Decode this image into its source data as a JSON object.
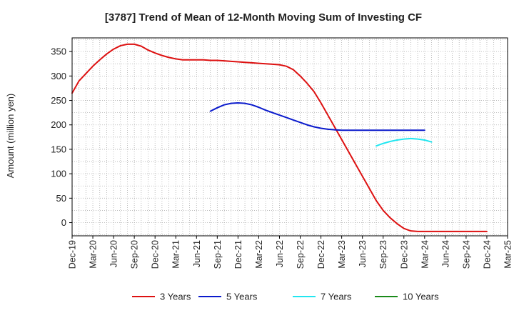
{
  "chart_data": {
    "type": "line",
    "title": "[3787]  Trend of Mean of 12-Month Moving Sum of Investing CF",
    "xlabel": "",
    "ylabel": "Amount (million yen)",
    "ylim": [
      -27,
      378
    ],
    "yticks": [
      0,
      50,
      100,
      150,
      200,
      250,
      300,
      350
    ],
    "x_start": "2019-12",
    "x_end": "2025-03",
    "xtick_labels": [
      "Dec-19",
      "Mar-20",
      "Jun-20",
      "Sep-20",
      "Dec-20",
      "Mar-21",
      "Jun-21",
      "Sep-21",
      "Dec-21",
      "Mar-22",
      "Jun-22",
      "Sep-22",
      "Dec-22",
      "Mar-23",
      "Jun-23",
      "Sep-23",
      "Dec-23",
      "Mar-24",
      "Jun-24",
      "Sep-24",
      "Dec-24",
      "Mar-25"
    ],
    "grid": true,
    "legend_position": "bottom",
    "colors": {
      "axis": "#000000",
      "grid": "#b0b0b0"
    },
    "series": [
      {
        "name": "3 Years",
        "color": "#dd1111",
        "start": "2019-12",
        "values": [
          265,
          290,
          305,
          320,
          333,
          345,
          355,
          362,
          365,
          365,
          361,
          353,
          347,
          342,
          338,
          335,
          333,
          333,
          333,
          333,
          332,
          332,
          331,
          330,
          329,
          328,
          327,
          326,
          325,
          324,
          323,
          320,
          313,
          300,
          285,
          268,
          245,
          220,
          195,
          170,
          145,
          120,
          95,
          70,
          45,
          25,
          10,
          -2,
          -12,
          -17,
          -18,
          -18,
          -18,
          -18,
          -18,
          -18,
          -18,
          -18,
          -18,
          -18,
          -18
        ]
      },
      {
        "name": "5 Years",
        "color": "#0a1acc",
        "start": "2021-08",
        "values": [
          228,
          235,
          241,
          244,
          245,
          244,
          241,
          236,
          230,
          225,
          220,
          215,
          210,
          205,
          200,
          196,
          193,
          191,
          190,
          189,
          189,
          189,
          189,
          189,
          189,
          189,
          189,
          189,
          189,
          189,
          189,
          189
        ]
      },
      {
        "name": "7 Years",
        "color": "#22e6f0",
        "start": "2023-08",
        "values": [
          157,
          162,
          166,
          169,
          171,
          172,
          171,
          169,
          165
        ]
      },
      {
        "name": "10 Years",
        "color": "#1a8a1a",
        "start": "2024-03",
        "values": []
      }
    ]
  }
}
